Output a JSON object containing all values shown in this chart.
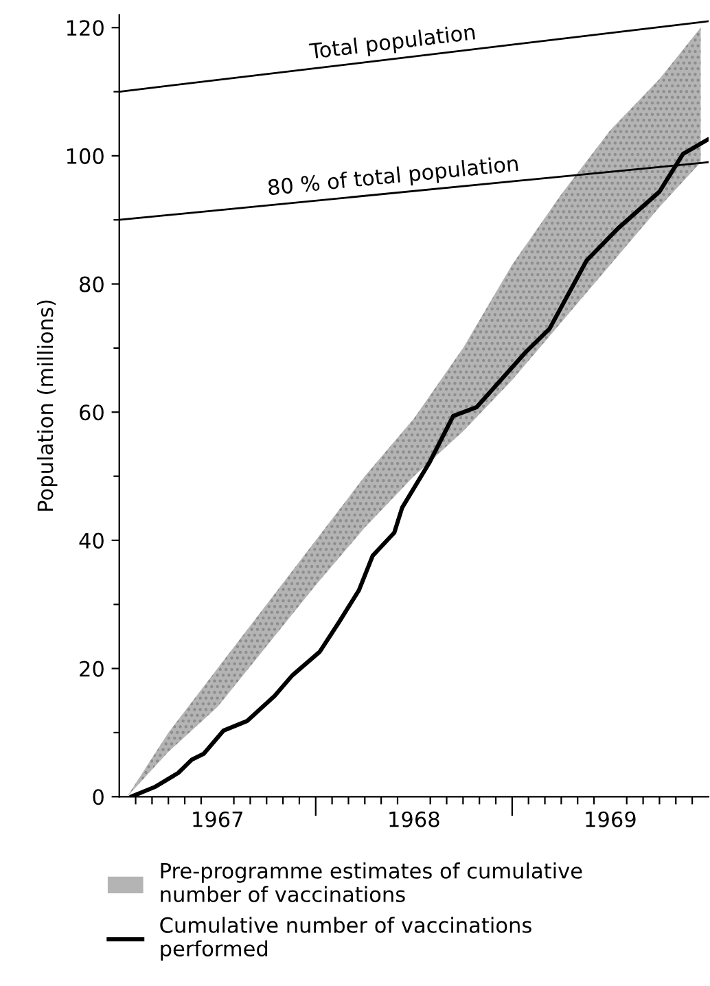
{
  "chart_data": {
    "type": "line",
    "ylabel": "Population (millions)",
    "xlim": [
      1967,
      1970
    ],
    "ylim": [
      0,
      122
    ],
    "xticks": [
      {
        "value": 1967.0833,
        "label": null
      },
      {
        "value": 1967.1667,
        "label": null
      },
      {
        "value": 1967.25,
        "label": null
      },
      {
        "value": 1967.3333,
        "label": null
      },
      {
        "value": 1967.4167,
        "label": null
      },
      {
        "value": 1967.5,
        "label": "1967"
      },
      {
        "value": 1967.5833,
        "label": null
      },
      {
        "value": 1967.6667,
        "label": null
      },
      {
        "value": 1967.75,
        "label": null
      },
      {
        "value": 1967.8333,
        "label": null
      },
      {
        "value": 1967.9167,
        "label": null
      },
      {
        "value": 1968,
        "label": null
      },
      {
        "value": 1968.0833,
        "label": null
      },
      {
        "value": 1968.1667,
        "label": null
      },
      {
        "value": 1968.25,
        "label": null
      },
      {
        "value": 1968.3333,
        "label": null
      },
      {
        "value": 1968.4167,
        "label": null
      },
      {
        "value": 1968.5,
        "label": "1968"
      },
      {
        "value": 1968.5833,
        "label": null
      },
      {
        "value": 1968.6667,
        "label": null
      },
      {
        "value": 1968.75,
        "label": null
      },
      {
        "value": 1968.8333,
        "label": null
      },
      {
        "value": 1968.9167,
        "label": null
      },
      {
        "value": 1969,
        "label": null
      },
      {
        "value": 1969.0833,
        "label": null
      },
      {
        "value": 1969.1667,
        "label": null
      },
      {
        "value": 1969.25,
        "label": null
      },
      {
        "value": 1969.3333,
        "label": null
      },
      {
        "value": 1969.4167,
        "label": null
      },
      {
        "value": 1969.5,
        "label": "1969"
      },
      {
        "value": 1969.5833,
        "label": null
      },
      {
        "value": 1969.6667,
        "label": null
      },
      {
        "value": 1969.75,
        "label": null
      },
      {
        "value": 1969.8333,
        "label": null
      },
      {
        "value": 1969.9167,
        "label": null
      }
    ],
    "yticks": [
      0,
      {
        "value": 10,
        "label": null
      },
      20,
      {
        "value": 30,
        "label": null
      },
      40,
      {
        "value": 50,
        "label": null
      },
      60,
      {
        "value": 70,
        "label": null
      },
      80,
      {
        "value": 90,
        "label": null
      },
      100,
      {
        "value": 110,
        "label": null
      },
      120
    ],
    "legend": "bottom",
    "grid": false,
    "annotations": [
      {
        "text": "Total population",
        "x": 1968.4,
        "y": 115.1
      },
      {
        "text": "80 % of total population",
        "x": 1968.4,
        "y": 94.2
      }
    ],
    "series": [
      {
        "type": "area",
        "name": "Pre-programme estimates of cumulative\nnumber of vaccinations",
        "color": "#b4b4b4",
        "x": [
          1967.04,
          1967.25,
          1967.5,
          1967.75,
          1968.0,
          1968.25,
          1968.5,
          1968.75,
          1969.0,
          1969.25,
          1969.5,
          1969.75,
          1969.96
        ],
        "values": [
          null,
          null,
          null,
          null,
          null,
          null,
          null,
          null,
          null,
          null,
          null,
          null,
          null
        ],
        "lower": [
          0,
          7,
          14,
          23.5,
          33,
          42,
          50,
          57,
          65,
          74,
          83,
          92,
          99
        ],
        "upper": [
          0,
          10,
          20,
          30,
          40,
          50,
          59,
          70,
          83,
          94,
          104,
          112,
          120
        ]
      },
      {
        "name": "Cumulative number of vaccinations\nperformed",
        "color": "#000000",
        "x": [
          1967.06,
          1967.18,
          1967.3,
          1967.37,
          1967.43,
          1967.53,
          1967.65,
          1967.79,
          1967.88,
          1968.02,
          1968.12,
          1968.22,
          1968.29,
          1968.4,
          1968.44,
          1968.58,
          1968.7,
          1968.82,
          1969.07,
          1969.19,
          1969.38,
          1969.54,
          1969.75,
          1969.87,
          1970.0
        ],
        "values": [
          0,
          1.5,
          3.7,
          5.8,
          6.7,
          10.3,
          11.8,
          15.7,
          18.9,
          22.6,
          27.3,
          32.2,
          37.6,
          41.2,
          45.1,
          52.2,
          59.4,
          60.8,
          69.4,
          73,
          83.7,
          88.7,
          94.4,
          100.3,
          102.6
        ]
      },
      {
        "color": "#000000",
        "x": [
          1967,
          1970
        ],
        "values": [
          110,
          121
        ]
      },
      {
        "color": "#000000",
        "x": [
          1967,
          1970
        ],
        "values": [
          90,
          99
        ]
      }
    ]
  }
}
